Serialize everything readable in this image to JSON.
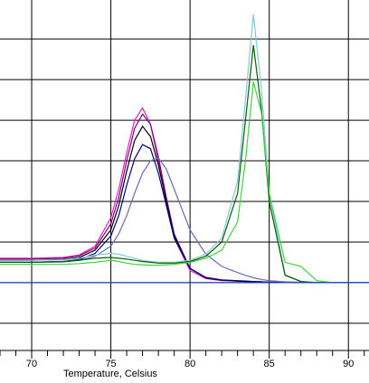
{
  "chart_data": {
    "type": "line",
    "x_label": "Temperature, Celsius",
    "x": [
      68,
      70,
      72,
      73,
      74,
      75,
      75.5,
      76,
      76.5,
      77,
      77.5,
      78,
      78.5,
      79,
      80,
      81,
      82,
      83,
      83.5,
      84,
      84.5,
      85,
      86,
      87,
      88,
      89,
      90,
      91.3
    ],
    "xlim": [
      68,
      91.3
    ],
    "xticks": [
      70,
      75,
      80,
      85,
      90
    ],
    "xminorticks": [
      68,
      69,
      71,
      72,
      73,
      74,
      76,
      77,
      78,
      79,
      81,
      82,
      83,
      84,
      86,
      87,
      88,
      89,
      91
    ],
    "ylim": [
      -1.67,
      6.96
    ],
    "ygrid": [
      -1,
      0,
      1,
      2,
      3,
      4,
      5,
      6
    ],
    "grid": true,
    "series": [
      {
        "color": "#e020c0",
        "values": [
          0.6,
          0.6,
          0.62,
          0.68,
          0.9,
          1.6,
          2.3,
          3.2,
          4.0,
          4.3,
          3.9,
          3.0,
          2.0,
          1.1,
          0.3,
          0.1,
          0.05,
          0.04,
          0.03,
          0.02,
          0.02,
          0.01,
          0.01,
          0,
          0,
          0,
          0,
          0
        ]
      },
      {
        "color": "#800080",
        "values": [
          0.58,
          0.58,
          0.6,
          0.66,
          0.85,
          1.45,
          2.1,
          3.0,
          3.8,
          4.15,
          3.9,
          3.1,
          2.1,
          1.2,
          0.35,
          0.12,
          0.06,
          0.04,
          0.03,
          0.02,
          0.02,
          0.01,
          0.01,
          0,
          0,
          0,
          0,
          0
        ]
      },
      {
        "color": "#000000",
        "values": [
          0.55,
          0.55,
          0.57,
          0.62,
          0.8,
          1.3,
          1.9,
          2.75,
          3.5,
          3.85,
          3.6,
          2.9,
          2.0,
          1.15,
          0.35,
          0.12,
          0.06,
          0.04,
          0.03,
          0.02,
          0.02,
          0.01,
          0.01,
          0,
          0,
          0,
          0,
          0
        ]
      },
      {
        "color": "#000080",
        "values": [
          0.5,
          0.5,
          0.52,
          0.57,
          0.72,
          1.15,
          1.65,
          2.4,
          3.05,
          3.4,
          3.3,
          2.7,
          1.9,
          1.1,
          0.35,
          0.13,
          0.07,
          0.05,
          0.04,
          0.03,
          0.02,
          0.01,
          0.01,
          0,
          0,
          0,
          0,
          0
        ]
      },
      {
        "color": "#6a6ab8",
        "values": [
          0.5,
          0.5,
          0.51,
          0.55,
          0.65,
          0.9,
          1.2,
          1.65,
          2.2,
          2.7,
          3.0,
          3.07,
          2.8,
          2.3,
          1.3,
          0.7,
          0.4,
          0.25,
          0.18,
          0.12,
          0.08,
          0.05,
          0.02,
          0.01,
          0,
          0,
          0,
          0
        ]
      },
      {
        "color": "#80c8dc",
        "values": [
          0.55,
          0.55,
          0.56,
          0.6,
          0.68,
          0.72,
          0.7,
          0.65,
          0.6,
          0.55,
          0.52,
          0.5,
          0.5,
          0.5,
          0.55,
          0.7,
          1.1,
          2.5,
          4.5,
          6.6,
          4.8,
          2.2,
          0.2,
          0.03,
          0,
          0,
          0,
          0
        ]
      },
      {
        "color": "#006000",
        "values": [
          0.5,
          0.5,
          0.52,
          0.55,
          0.6,
          0.62,
          0.6,
          0.58,
          0.55,
          0.52,
          0.5,
          0.48,
          0.48,
          0.48,
          0.52,
          0.65,
          1.0,
          2.2,
          4.0,
          5.85,
          4.3,
          2.0,
          0.18,
          0.03,
          0,
          0,
          0,
          0
        ]
      },
      {
        "color": "#40d040",
        "values": [
          0.45,
          0.45,
          0.45,
          0.47,
          0.5,
          0.55,
          0.52,
          0.48,
          0.45,
          0.44,
          0.43,
          0.43,
          0.44,
          0.45,
          0.5,
          0.6,
          0.8,
          1.5,
          3.0,
          4.95,
          4.2,
          2.2,
          0.5,
          0.4,
          0.05,
          0,
          0,
          0
        ]
      },
      {
        "color": "#2040c0",
        "values": [
          0,
          0,
          0,
          0,
          0,
          0,
          0,
          0,
          0,
          0,
          0,
          0,
          0,
          0,
          0,
          0,
          0,
          0,
          0,
          0,
          0,
          0,
          0,
          0,
          0,
          0,
          0,
          0
        ]
      }
    ]
  }
}
